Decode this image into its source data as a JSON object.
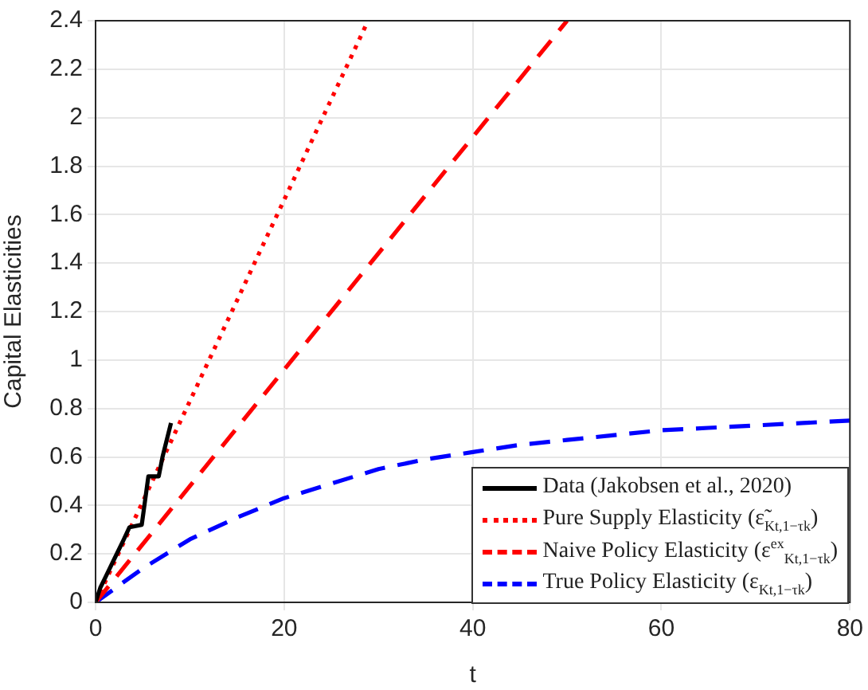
{
  "chart_data": {
    "type": "line",
    "xlabel": "t",
    "ylabel": "Capital Elasticities",
    "xlim": [
      0,
      80
    ],
    "xticks": [
      0,
      20,
      40,
      60,
      80
    ],
    "ylim": [
      0,
      2.4
    ],
    "yticks": [
      0,
      0.2,
      0.4,
      0.6,
      0.8,
      1,
      1.2,
      1.4,
      1.6,
      1.8,
      2,
      2.2,
      2.4
    ],
    "grid": true,
    "legend": "bottom right",
    "marker": "none",
    "series": [
      {
        "name": "Data (Jakobsen et al., 2020)",
        "color": "#000000",
        "line_style": "solid",
        "x": [
          0,
          0.5,
          1,
          2,
          3,
          3.6,
          4.9,
          5.6,
          6.7,
          7.1,
          8.0
        ],
        "values": [
          0,
          0.06,
          0.1,
          0.18,
          0.26,
          0.31,
          0.32,
          0.52,
          0.52,
          0.6,
          0.74
        ]
      },
      {
        "name": "Pure Supply Elasticity (ε̃$_{Kt,1−τk}$)",
        "color": "#ff0000",
        "line_style": "dotted",
        "x": [
          0,
          28.9
        ],
        "values": [
          0,
          2.4
        ]
      },
      {
        "name": "Naive Policy Elasticity (ε$^{ex}$$_{Kt,1−τk}$)",
        "color": "#ff0000",
        "line_style": "dashed",
        "x": [
          0,
          50
        ],
        "values": [
          0,
          2.4
        ]
      },
      {
        "name": "True Policy Elasticity (ε$_{Kt,1−τk}$)",
        "color": "#0000ff",
        "line_style": "dashed",
        "x": [
          0,
          5,
          10,
          15,
          20,
          25,
          30,
          35,
          40,
          45,
          50,
          55,
          60,
          65,
          70,
          75,
          80
        ],
        "values": [
          0,
          0.14,
          0.26,
          0.35,
          0.43,
          0.49,
          0.55,
          0.59,
          0.62,
          0.65,
          0.67,
          0.69,
          0.71,
          0.72,
          0.73,
          0.74,
          0.75
        ]
      }
    ]
  }
}
